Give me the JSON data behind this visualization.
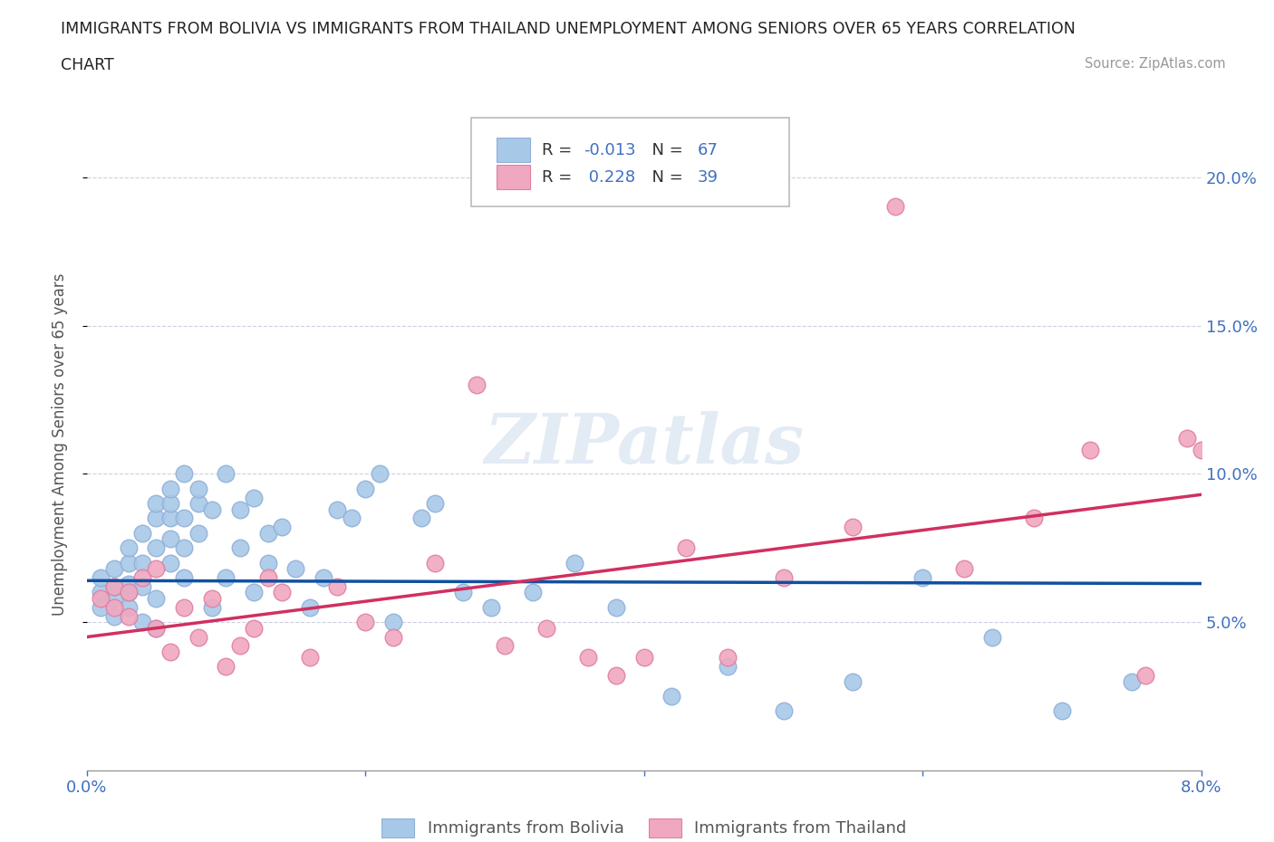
{
  "title_line1": "IMMIGRANTS FROM BOLIVIA VS IMMIGRANTS FROM THAILAND UNEMPLOYMENT AMONG SENIORS OVER 65 YEARS CORRELATION",
  "title_line2": "CHART",
  "source": "Source: ZipAtlas.com",
  "ylabel": "Unemployment Among Seniors over 65 years",
  "xlim": [
    0.0,
    0.08
  ],
  "ylim": [
    0.0,
    0.22
  ],
  "watermark": "ZIPatlas",
  "legend_R_bolivia": "-0.013",
  "legend_N_bolivia": "67",
  "legend_R_thailand": "0.228",
  "legend_N_thailand": "39",
  "color_bolivia": "#a8c8e8",
  "color_thailand": "#f0a8c0",
  "color_trendline_bolivia": "#1050a0",
  "color_trendline_thailand": "#d03060",
  "color_axis_labels": "#4070c0",
  "color_grid": "#d0d0e0",
  "bolivia_trend_x0": 0.0,
  "bolivia_trend_y0": 0.064,
  "bolivia_trend_x1": 0.08,
  "bolivia_trend_y1": 0.063,
  "thailand_trend_x0": 0.0,
  "thailand_trend_y0": 0.045,
  "thailand_trend_x1": 0.08,
  "thailand_trend_y1": 0.093,
  "bolivia_x": [
    0.001,
    0.001,
    0.001,
    0.002,
    0.002,
    0.002,
    0.002,
    0.003,
    0.003,
    0.003,
    0.003,
    0.003,
    0.004,
    0.004,
    0.004,
    0.004,
    0.005,
    0.005,
    0.005,
    0.005,
    0.005,
    0.006,
    0.006,
    0.006,
    0.006,
    0.006,
    0.007,
    0.007,
    0.007,
    0.007,
    0.008,
    0.008,
    0.008,
    0.009,
    0.009,
    0.01,
    0.01,
    0.011,
    0.011,
    0.012,
    0.012,
    0.013,
    0.013,
    0.014,
    0.015,
    0.016,
    0.017,
    0.018,
    0.019,
    0.02,
    0.021,
    0.022,
    0.024,
    0.025,
    0.027,
    0.029,
    0.032,
    0.035,
    0.038,
    0.042,
    0.046,
    0.05,
    0.055,
    0.06,
    0.065,
    0.07,
    0.075
  ],
  "bolivia_y": [
    0.06,
    0.055,
    0.065,
    0.058,
    0.062,
    0.052,
    0.068,
    0.055,
    0.06,
    0.063,
    0.07,
    0.075,
    0.062,
    0.07,
    0.05,
    0.08,
    0.048,
    0.058,
    0.075,
    0.085,
    0.09,
    0.07,
    0.078,
    0.085,
    0.09,
    0.095,
    0.065,
    0.075,
    0.085,
    0.1,
    0.08,
    0.09,
    0.095,
    0.055,
    0.088,
    0.065,
    0.1,
    0.075,
    0.088,
    0.06,
    0.092,
    0.07,
    0.08,
    0.082,
    0.068,
    0.055,
    0.065,
    0.088,
    0.085,
    0.095,
    0.1,
    0.05,
    0.085,
    0.09,
    0.06,
    0.055,
    0.06,
    0.07,
    0.055,
    0.025,
    0.035,
    0.02,
    0.03,
    0.065,
    0.045,
    0.02,
    0.03
  ],
  "thailand_x": [
    0.001,
    0.002,
    0.002,
    0.003,
    0.003,
    0.004,
    0.005,
    0.005,
    0.006,
    0.007,
    0.008,
    0.009,
    0.01,
    0.011,
    0.012,
    0.013,
    0.014,
    0.016,
    0.018,
    0.02,
    0.022,
    0.025,
    0.028,
    0.03,
    0.033,
    0.036,
    0.038,
    0.04,
    0.043,
    0.046,
    0.05,
    0.055,
    0.058,
    0.063,
    0.068,
    0.072,
    0.076,
    0.079,
    0.08
  ],
  "thailand_y": [
    0.058,
    0.055,
    0.062,
    0.06,
    0.052,
    0.065,
    0.048,
    0.068,
    0.04,
    0.055,
    0.045,
    0.058,
    0.035,
    0.042,
    0.048,
    0.065,
    0.06,
    0.038,
    0.062,
    0.05,
    0.045,
    0.07,
    0.13,
    0.042,
    0.048,
    0.038,
    0.032,
    0.038,
    0.075,
    0.038,
    0.065,
    0.082,
    0.19,
    0.068,
    0.085,
    0.108,
    0.032,
    0.112,
    0.108
  ]
}
